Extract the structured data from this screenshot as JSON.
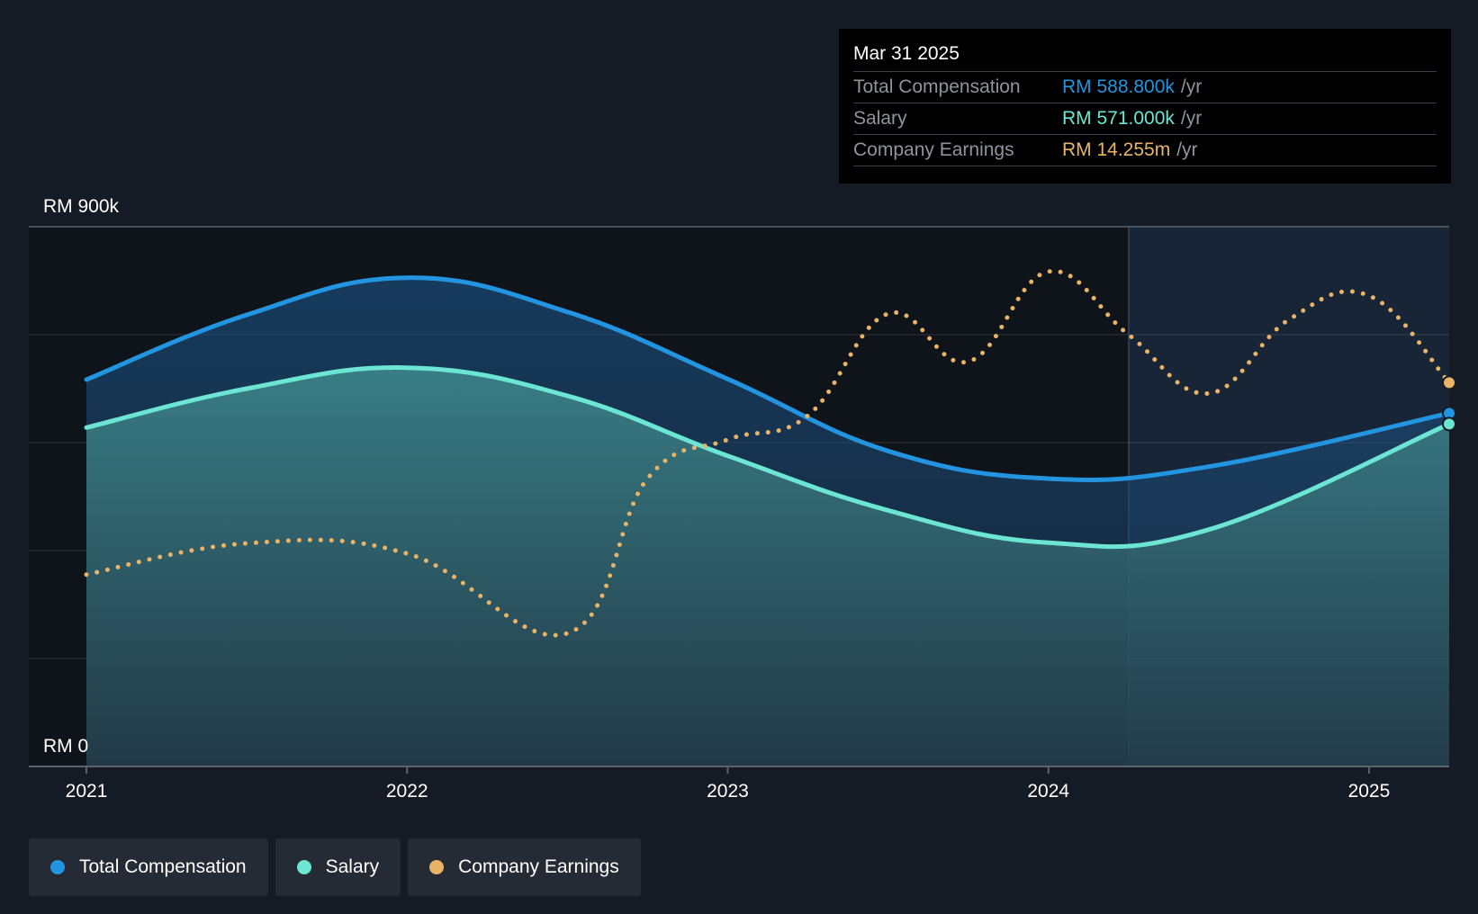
{
  "tooltip": {
    "date": "Mar 31 2025",
    "rows": [
      {
        "label": "Total Compensation",
        "value": "RM 588.800k",
        "unit": "/yr",
        "color": "#2394df"
      },
      {
        "label": "Salary",
        "value": "RM 571.000k",
        "unit": "/yr",
        "color": "#6ce5d2"
      },
      {
        "label": "Company Earnings",
        "value": "RM 14.255m",
        "unit": "/yr",
        "color": "#e9b467"
      }
    ]
  },
  "legend": [
    {
      "label": "Total Compensation",
      "color": "#2394df"
    },
    {
      "label": "Salary",
      "color": "#6ce5d2"
    },
    {
      "label": "Company Earnings",
      "color": "#e9b467"
    }
  ],
  "chart_data": {
    "type": "line",
    "ylim": [
      0,
      900
    ],
    "y_tick_labels": [
      "RM 0",
      "RM 900k"
    ],
    "xlim": [
      2021,
      2025.25
    ],
    "x_ticks": [
      2021,
      2022,
      2023,
      2024,
      2025
    ],
    "x_tick_labels": [
      "2021",
      "2022",
      "2023",
      "2024",
      "2025"
    ],
    "grid": true,
    "forecast_region_start": 2024.25,
    "series": [
      {
        "name": "Total Compensation",
        "color": "#2394df",
        "style": "solid-area",
        "x": [
          2021,
          2021.5,
          2022,
          2022.5,
          2023,
          2023.5,
          2024,
          2024.5,
          2025.25
        ],
        "y": [
          645,
          753,
          815,
          758,
          646,
          526,
          480,
          500,
          589
        ]
      },
      {
        "name": "Salary",
        "color": "#6ce5d2",
        "style": "solid-area",
        "x": [
          2021,
          2021.5,
          2022,
          2022.5,
          2023,
          2023.5,
          2024,
          2024.5,
          2025.25
        ],
        "y": [
          565,
          630,
          665,
          618,
          518,
          427,
          373,
          395,
          571
        ]
      },
      {
        "name": "Company Earnings",
        "color": "#e9b467",
        "style": "dotted",
        "x": [
          2021,
          2021.5,
          2022,
          2022.5,
          2022.75,
          2023,
          2023.25,
          2023.5,
          2023.75,
          2024,
          2024.25,
          2024.5,
          2024.75,
          2025,
          2025.25
        ],
        "y": [
          320,
          372,
          355,
          222,
          480,
          545,
          585,
          755,
          675,
          825,
          720,
          622,
          745,
          785,
          640
        ]
      }
    ]
  }
}
